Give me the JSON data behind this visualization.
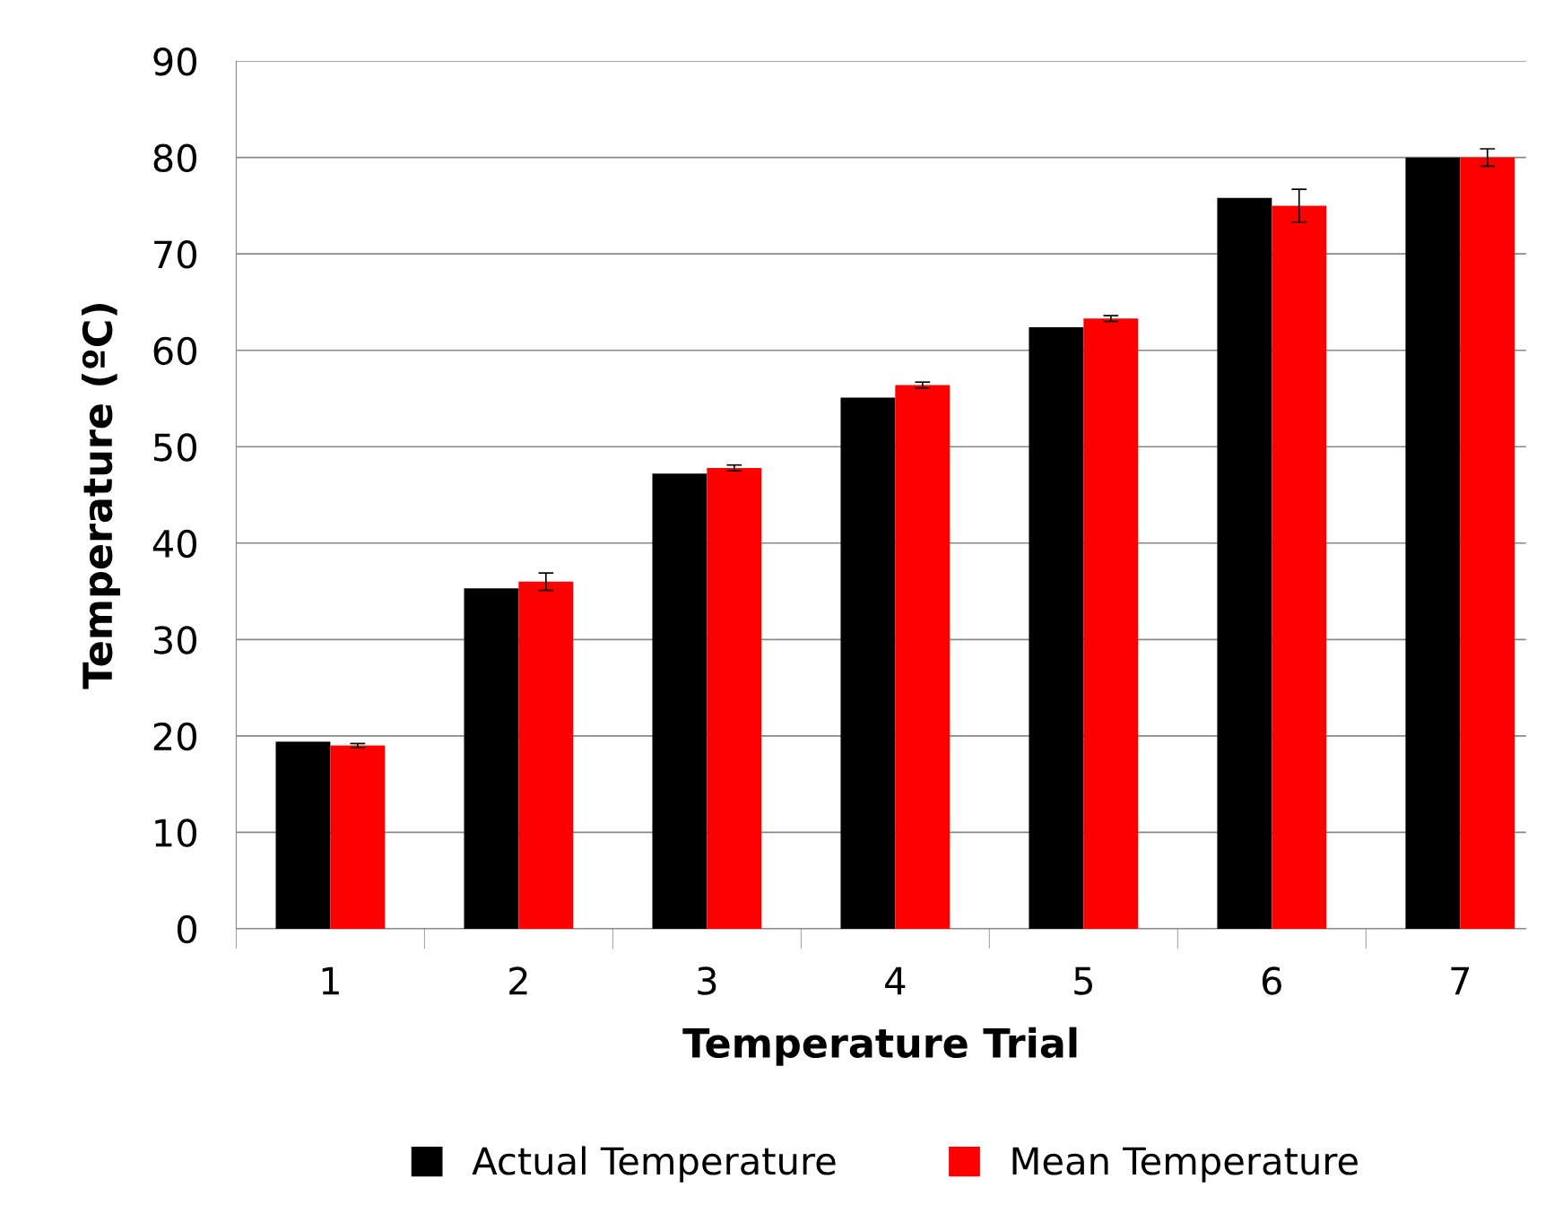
{
  "chart_data": {
    "type": "bar",
    "xlabel": "Temperature Trial",
    "ylabel": "Temperature (ºC)",
    "categories": [
      "1",
      "2",
      "3",
      "4",
      "5",
      "6",
      "7"
    ],
    "series": [
      {
        "name": "Actual Temperature",
        "color": "#000000",
        "values": [
          19.4,
          35.3,
          47.2,
          55.1,
          62.4,
          75.8,
          80.0
        ]
      },
      {
        "name": "Mean Temperature",
        "color": "#ff0000",
        "values": [
          19.0,
          36.0,
          47.8,
          56.4,
          63.3,
          75.0,
          80.0
        ],
        "errors": [
          0.2,
          0.9,
          0.3,
          0.3,
          0.3,
          1.7,
          0.9
        ]
      }
    ],
    "ylim": [
      0,
      90
    ],
    "yticks": [
      0,
      10,
      20,
      30,
      40,
      50,
      60,
      70,
      80,
      90
    ],
    "grid": "y",
    "legend": "bottom"
  }
}
